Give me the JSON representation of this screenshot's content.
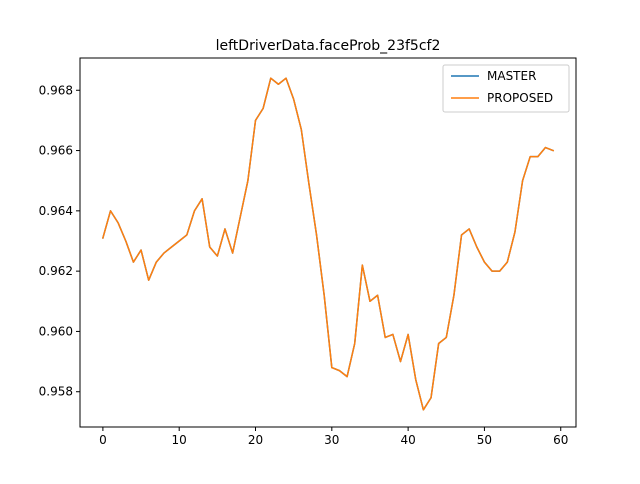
{
  "chart_data": {
    "type": "line",
    "title": "leftDriverData.faceProb_23f5cf2",
    "xlabel": "",
    "ylabel": "",
    "xlim": [
      -3,
      62
    ],
    "ylim": [
      0.95683,
      0.96907
    ],
    "xticks": [
      0,
      10,
      20,
      30,
      40,
      50,
      60
    ],
    "yticks": [
      0.958,
      0.96,
      0.962,
      0.964,
      0.966,
      0.968
    ],
    "ytick_labels": [
      "0.958",
      "0.960",
      "0.962",
      "0.964",
      "0.966",
      "0.968"
    ],
    "grid": false,
    "legend_position": "top-right",
    "x": [
      0,
      1,
      2,
      3,
      4,
      5,
      6,
      7,
      8,
      9,
      10,
      11,
      12,
      13,
      14,
      15,
      16,
      17,
      18,
      19,
      20,
      21,
      22,
      23,
      24,
      25,
      26,
      27,
      28,
      29,
      30,
      31,
      32,
      33,
      34,
      35,
      36,
      37,
      38,
      39,
      40,
      41,
      42,
      43,
      44,
      45,
      46,
      47,
      48,
      49,
      50,
      51,
      52,
      53,
      54,
      55,
      56,
      57,
      58,
      59
    ],
    "series": [
      {
        "name": "MASTER",
        "color": "#1f77b4",
        "values": [
          0.9631,
          0.964,
          0.9636,
          0.963,
          0.9623,
          0.9627,
          0.9617,
          0.9623,
          0.9626,
          0.9628,
          0.963,
          0.9632,
          0.964,
          0.9644,
          0.9628,
          0.9625,
          0.9634,
          0.9626,
          0.9638,
          0.965,
          0.967,
          0.9674,
          0.9684,
          0.9682,
          0.9684,
          0.9677,
          0.9667,
          0.9649,
          0.9632,
          0.9612,
          0.9588,
          0.9587,
          0.9585,
          0.9596,
          0.9622,
          0.961,
          0.9612,
          0.9598,
          0.9599,
          0.959,
          0.9599,
          0.9584,
          0.9574,
          0.9578,
          0.9596,
          0.9598,
          0.9612,
          0.9632,
          0.9634,
          0.9628,
          0.9623,
          0.962,
          0.962,
          0.9623,
          0.9633,
          0.965,
          0.9658,
          0.9658,
          0.9661,
          0.966
        ]
      },
      {
        "name": "PROPOSED",
        "color": "#ff7f0e",
        "values": [
          0.9631,
          0.964,
          0.9636,
          0.963,
          0.9623,
          0.9627,
          0.9617,
          0.9623,
          0.9626,
          0.9628,
          0.963,
          0.9632,
          0.964,
          0.9644,
          0.9628,
          0.9625,
          0.9634,
          0.9626,
          0.9638,
          0.965,
          0.967,
          0.9674,
          0.9684,
          0.9682,
          0.9684,
          0.9677,
          0.9667,
          0.9649,
          0.9632,
          0.9612,
          0.9588,
          0.9587,
          0.9585,
          0.9596,
          0.9622,
          0.961,
          0.9612,
          0.9598,
          0.9599,
          0.959,
          0.9599,
          0.9584,
          0.9574,
          0.9578,
          0.9596,
          0.9598,
          0.9612,
          0.9632,
          0.9634,
          0.9628,
          0.9623,
          0.962,
          0.962,
          0.9623,
          0.9633,
          0.965,
          0.9658,
          0.9658,
          0.9661,
          0.966
        ]
      }
    ]
  }
}
